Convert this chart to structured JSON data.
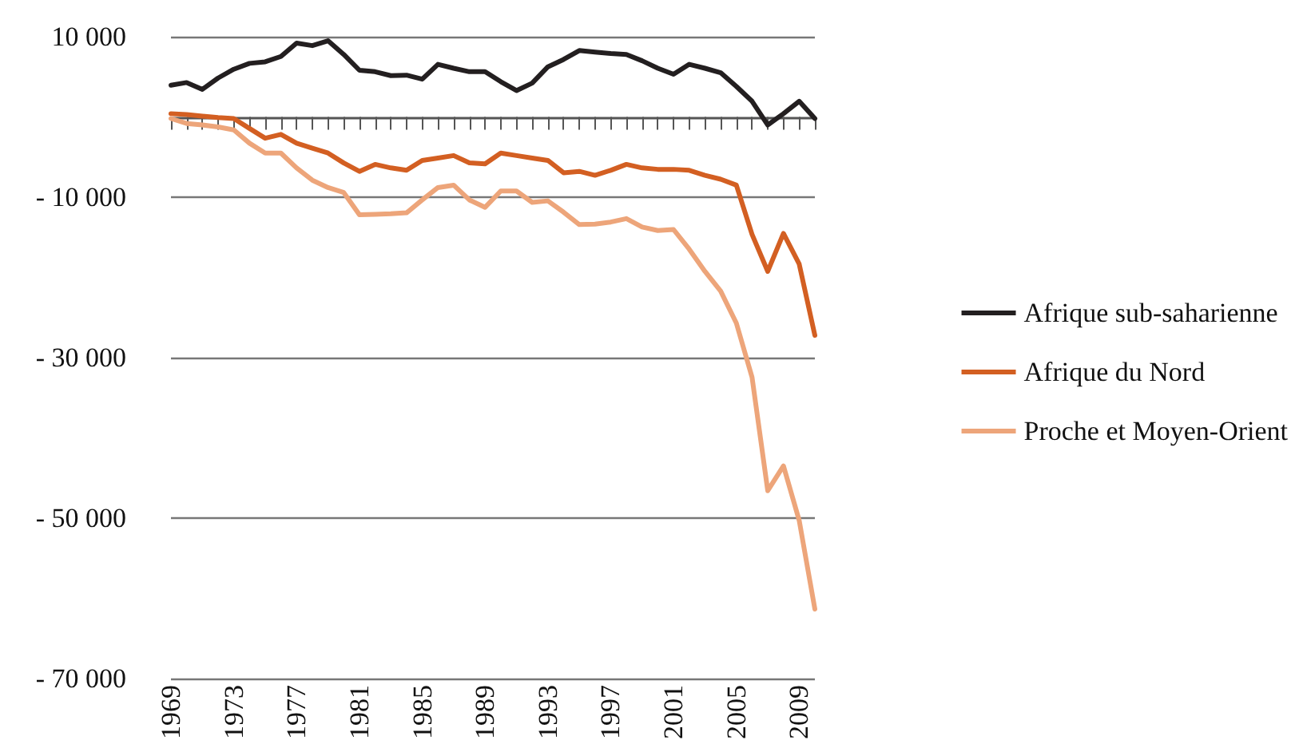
{
  "chart_data": {
    "type": "line",
    "categories": [
      "1969",
      null,
      null,
      null,
      "1973",
      null,
      null,
      null,
      "1977",
      null,
      null,
      null,
      "1981",
      null,
      null,
      null,
      "1985",
      null,
      null,
      null,
      "1989",
      null,
      null,
      null,
      "1993",
      null,
      null,
      null,
      "1997",
      null,
      null,
      null,
      "2001",
      null,
      null,
      null,
      "2005",
      null,
      null,
      null,
      "2009",
      null
    ],
    "series": [
      {
        "name": "Afrique sub-saharienne",
        "color": "#231f20",
        "values": [
          3960,
          4290,
          3440,
          4850,
          5950,
          6680,
          6870,
          7540,
          9200,
          8890,
          9500,
          7790,
          5820,
          5640,
          5150,
          5210,
          4710,
          6560,
          6070,
          5640,
          5640,
          4400,
          3290,
          4220,
          6250,
          7170,
          8280,
          8090,
          7910,
          7790,
          7000,
          6070,
          5330,
          6560,
          6070,
          5520,
          3800,
          1960,
          -1000,
          410,
          1960,
          -200
        ]
      },
      {
        "name": "Afrique du Nord",
        "color": "#d35f22",
        "values": [
          410,
          300,
          100,
          -80,
          -200,
          -1430,
          -2650,
          -2170,
          -3270,
          -3890,
          -4500,
          -5730,
          -6780,
          -5910,
          -6350,
          -6650,
          -5420,
          -5120,
          -4810,
          -5730,
          -5850,
          -4500,
          -4810,
          -5120,
          -5420,
          -6960,
          -6780,
          -7270,
          -6650,
          -5910,
          -6350,
          -6530,
          -6530,
          -6650,
          -7270,
          -7760,
          -8500,
          -14640,
          -19250,
          -14520,
          -18330,
          -27230
        ]
      },
      {
        "name": "Proche et Moyen-Orient",
        "color": "#eda57a",
        "values": [
          -200,
          -810,
          -1000,
          -1240,
          -1610,
          -3270,
          -4500,
          -4500,
          -6350,
          -7880,
          -8800,
          -9420,
          -12190,
          -12130,
          -12070,
          -11950,
          -10340,
          -8800,
          -8500,
          -10340,
          -11260,
          -9230,
          -9230,
          -10650,
          -10460,
          -11870,
          -13410,
          -13350,
          -13100,
          -12670,
          -13720,
          -14150,
          -14030,
          -16490,
          -19250,
          -21700,
          -25700,
          -32450,
          -46590,
          -43500,
          -50280,
          -61340
        ]
      }
    ],
    "ylim": [
      -70000,
      10000
    ],
    "yticks": [
      {
        "value": -70000,
        "label": "- 70 000"
      },
      {
        "value": -50000,
        "label": "- 50 000"
      },
      {
        "value": -30000,
        "label": "- 30 000"
      },
      {
        "value": -10000,
        "label": "- 10 000"
      },
      {
        "value": 10000,
        "label": "10 000"
      }
    ],
    "grid": "y",
    "legend": "right",
    "marker": "none",
    "line_style": "solid"
  }
}
